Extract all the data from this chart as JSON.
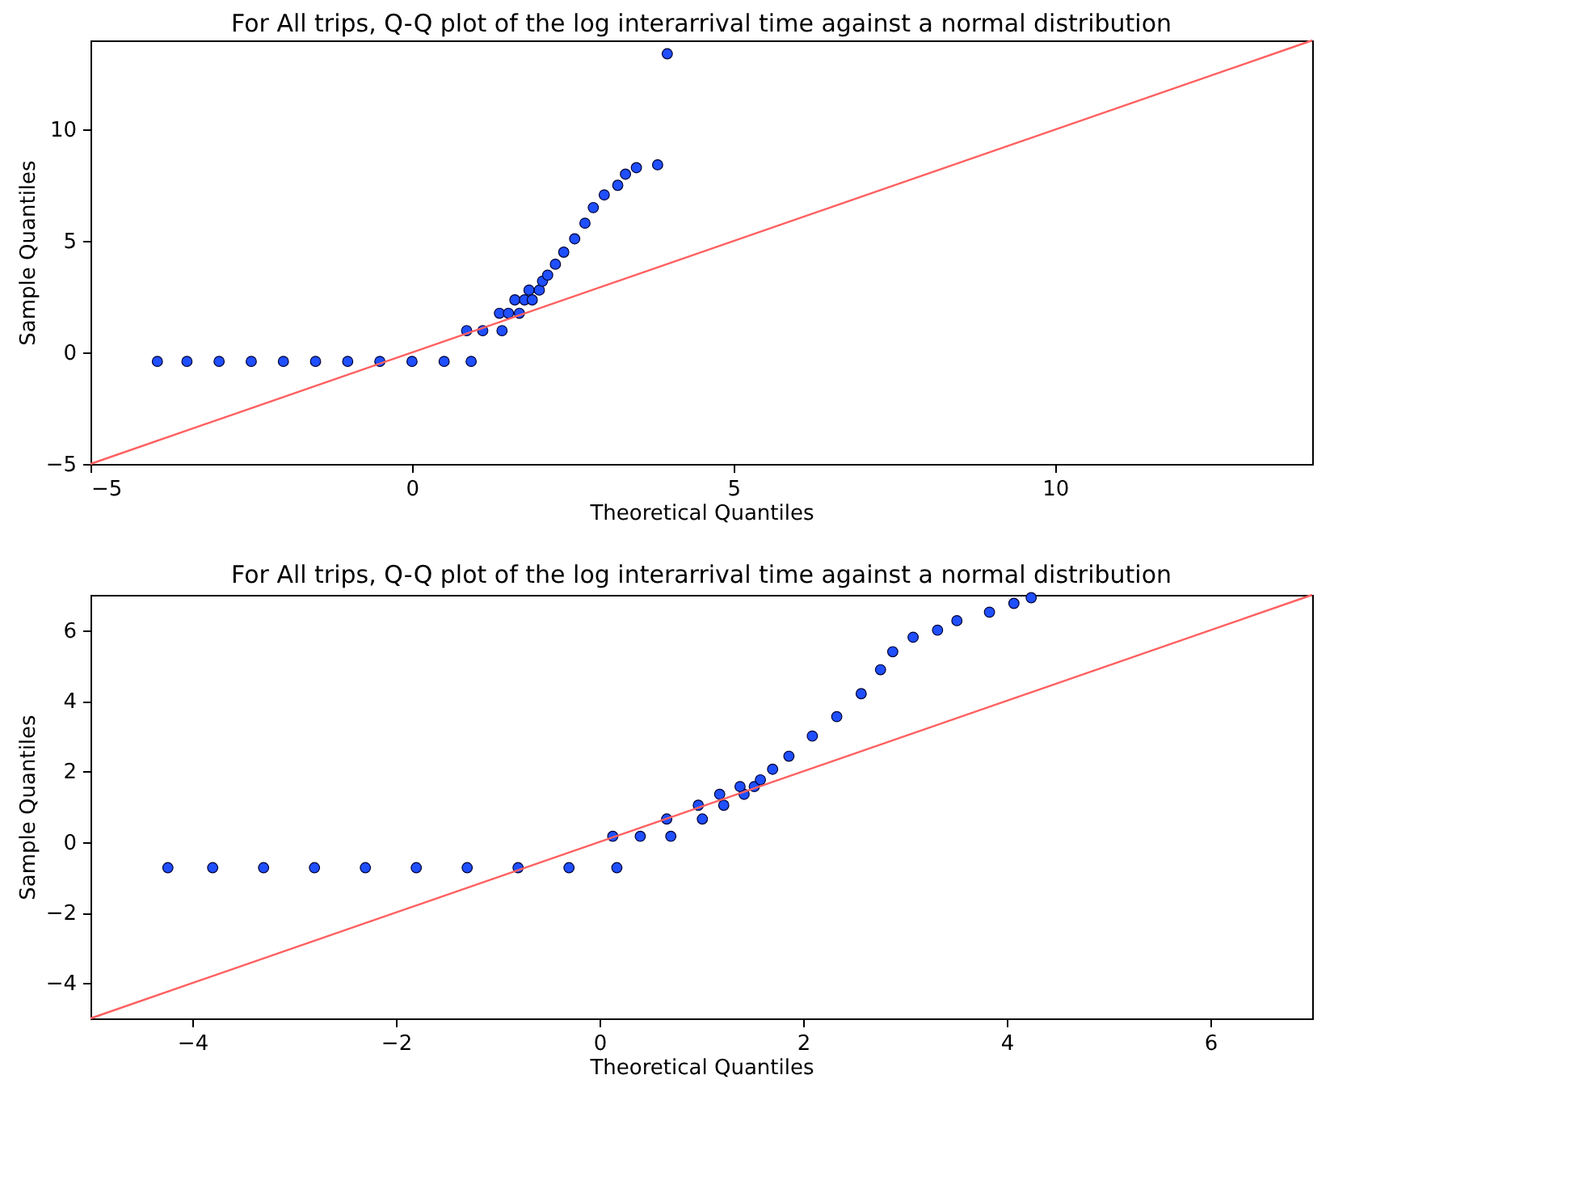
{
  "chart_data": [
    {
      "type": "scatter",
      "title": "For All trips, Q-Q plot of the log interarrival time against a normal distribution",
      "xlabel": "Theoretical Quantiles",
      "ylabel": "Sample Quantiles",
      "xlim": [
        -5,
        14
      ],
      "ylim": [
        -5,
        14
      ],
      "xticks": [
        -5,
        0,
        5,
        10
      ],
      "yticks": [
        -5,
        0,
        5,
        10
      ],
      "marker": "circle",
      "grid": false,
      "series": [
        {
          "color": "#1f4fff",
          "x": [
            -3.96,
            -3.5,
            -3.0,
            -2.5,
            -2.0,
            -1.5,
            -1.0,
            -0.5,
            0.0,
            0.5,
            0.92,
            0.85,
            1.1,
            1.4,
            1.36,
            1.5,
            1.67,
            1.6,
            1.75,
            1.87,
            1.82,
            1.98,
            2.03,
            2.11,
            2.23,
            2.36,
            2.53,
            2.69,
            2.82,
            2.99,
            3.2,
            3.32,
            3.49,
            3.82,
            3.97
          ],
          "values": [
            -0.4,
            -0.4,
            -0.4,
            -0.4,
            -0.4,
            -0.4,
            -0.4,
            -0.4,
            -0.4,
            -0.4,
            -0.4,
            0.98,
            0.98,
            0.98,
            1.76,
            1.76,
            1.76,
            2.36,
            2.36,
            2.36,
            2.8,
            2.8,
            3.2,
            3.47,
            3.96,
            4.5,
            5.1,
            5.8,
            6.5,
            7.07,
            7.5,
            8.0,
            8.29,
            8.42,
            13.4
          ]
        },
        {
          "type": "line",
          "marker": "none",
          "color": "#ff6060",
          "x": [
            -5,
            14
          ],
          "values": [
            -5,
            14
          ]
        }
      ]
    },
    {
      "type": "scatter",
      "title": "For All trips, Q-Q plot of the log interarrival time against a normal distribution",
      "xlabel": "Theoretical Quantiles",
      "ylabel": "Sample Quantiles",
      "xlim": [
        -5,
        7
      ],
      "ylim": [
        -5,
        7
      ],
      "xticks": [
        -4,
        -2,
        0,
        2,
        4,
        6
      ],
      "yticks": [
        -4,
        -2,
        0,
        2,
        4,
        6
      ],
      "marker": "circle",
      "grid": false,
      "series": [
        {
          "color": "#1f4fff",
          "x": [
            -4.24,
            -3.8,
            -3.3,
            -2.8,
            -2.3,
            -1.8,
            -1.3,
            -0.8,
            -0.3,
            0.17,
            0.13,
            0.4,
            0.7,
            0.66,
            1.01,
            0.97,
            1.22,
            1.18,
            1.42,
            1.38,
            1.52,
            1.58,
            1.7,
            1.86,
            2.09,
            2.33,
            2.57,
            2.76,
            2.88,
            3.08,
            3.32,
            3.51,
            3.83,
            4.07,
            4.24
          ],
          "values": [
            -0.73,
            -0.73,
            -0.73,
            -0.73,
            -0.73,
            -0.73,
            -0.73,
            -0.73,
            -0.73,
            -0.73,
            0.16,
            0.16,
            0.16,
            0.65,
            0.65,
            1.04,
            1.04,
            1.35,
            1.35,
            1.57,
            1.57,
            1.76,
            2.06,
            2.43,
            3.0,
            3.55,
            4.2,
            4.88,
            5.39,
            5.8,
            6.0,
            6.27,
            6.51,
            6.76,
            6.92
          ]
        },
        {
          "type": "line",
          "marker": "none",
          "color": "#ff6060",
          "x": [
            -5,
            7
          ],
          "values": [
            -5,
            7
          ]
        }
      ]
    }
  ]
}
